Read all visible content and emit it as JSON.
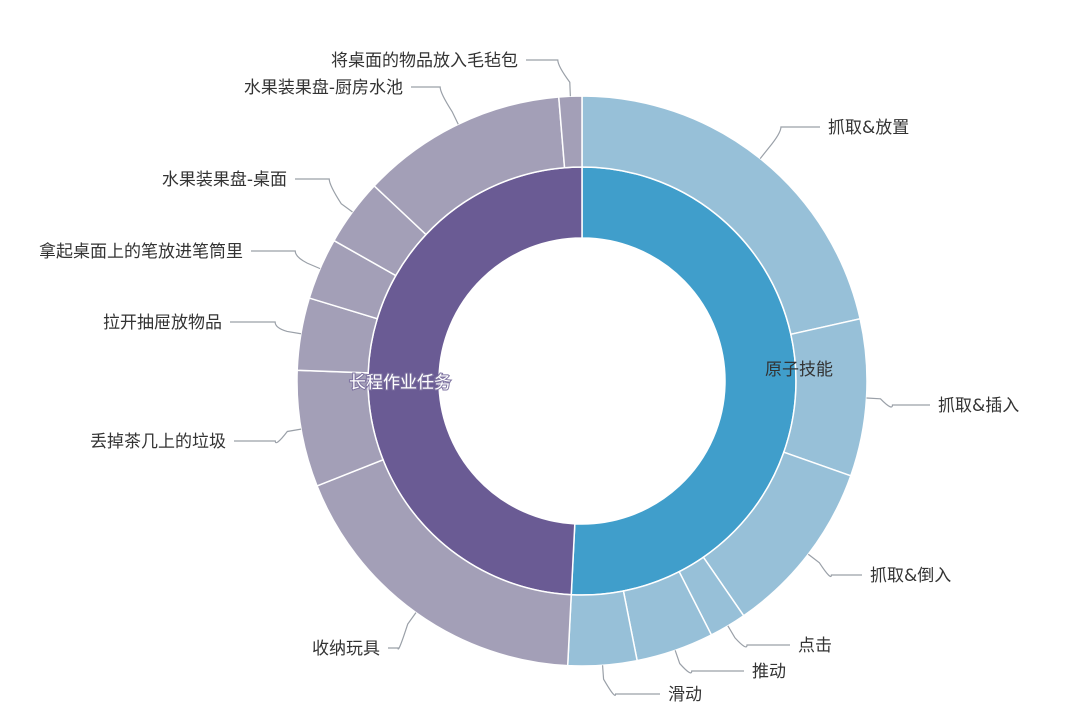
{
  "chart_data": {
    "type": "sunburst",
    "unit": "percent (estimated share of circle)",
    "colors": {
      "原子技能_inner": "#409ecb",
      "原子技能_outer": "#97c0d8",
      "长程作业任务_inner": "#6a5b94",
      "长程作业任务_outer": "#a39fb7"
    },
    "series": [
      {
        "name": "原子技能",
        "value": 50.8,
        "children": [
          {
            "name": "抓取&放置",
            "value": 21.5
          },
          {
            "name": "抓取&插入",
            "value": 8.9
          },
          {
            "name": "抓取&倒入",
            "value": 10.0
          },
          {
            "name": "点击",
            "value": 2.1
          },
          {
            "name": "推动",
            "value": 4.4
          },
          {
            "name": "滑动",
            "value": 3.9
          }
        ]
      },
      {
        "name": "长程作业任务",
        "value": 49.2,
        "children": [
          {
            "name": "收纳玩具",
            "value": 18.2
          },
          {
            "name": "丢掉茶几上的垃圾",
            "value": 6.6
          },
          {
            "name": "拉开抽屉放物品",
            "value": 4.1
          },
          {
            "name": "拿起桌面上的笔放进笔筒里",
            "value": 3.5
          },
          {
            "name": "水果装果盘-桌面",
            "value": 3.8
          },
          {
            "name": "水果装果盘-厨房水池",
            "value": 11.7
          },
          {
            "name": "将桌面的物品放入毛毡包",
            "value": 1.3
          }
        ]
      }
    ]
  }
}
